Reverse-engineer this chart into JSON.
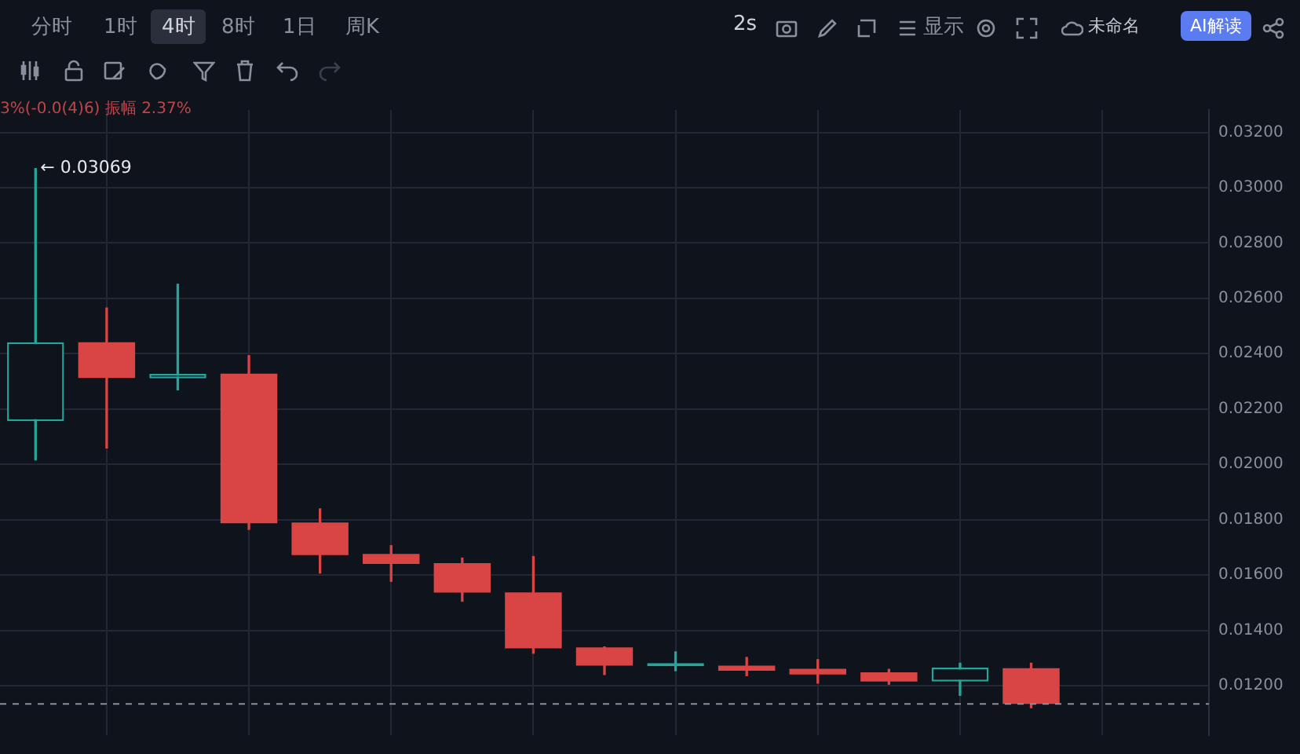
{
  "chart_data": {
    "type": "candlestick",
    "categories": [
      null,
      null,
      null,
      null,
      null,
      null,
      null,
      null,
      null,
      null,
      null,
      null,
      null,
      null,
      null,
      null,
      null
    ],
    "ohlc": [
      [
        0.02156,
        0.03069,
        0.02016,
        0.02441
      ],
      [
        0.02441,
        0.02565,
        0.02059,
        0.02312
      ],
      [
        0.02311,
        0.02651,
        0.02269,
        0.02327
      ],
      [
        0.02328,
        0.02393,
        0.01765,
        0.01787
      ],
      [
        0.0179,
        0.01839,
        0.01607,
        0.01672
      ],
      [
        0.01676,
        0.01706,
        0.01577,
        0.0164
      ],
      [
        0.01643,
        0.01661,
        0.01505,
        0.01536
      ],
      [
        0.01537,
        0.01667,
        0.01317,
        0.01335
      ],
      [
        0.01338,
        0.0134,
        0.0124,
        0.01272
      ],
      [
        0.0127,
        0.01322,
        0.01254,
        0.01275
      ],
      [
        0.01272,
        0.01302,
        0.01236,
        0.01254
      ],
      [
        0.01261,
        0.01294,
        0.01209,
        0.0124
      ],
      [
        0.01248,
        0.01259,
        0.01205,
        0.01215
      ],
      [
        0.01215,
        0.01281,
        0.01165,
        0.01265
      ],
      [
        0.01263,
        0.01281,
        0.0112,
        0.01134
      ],
      null,
      null
    ],
    "colors": [
      "#26a69a",
      "#d94545",
      "#26a69a",
      "#d94545",
      "#d94545",
      "#d94545",
      "#d94545",
      "#d94545",
      "#d94545",
      "#26a69a",
      "#d94545",
      "#d94545",
      "#d94545",
      "#26a69a",
      "#d94545",
      null,
      null
    ],
    "ylim": [
      0.01021,
      0.03281
    ],
    "yticks": [
      {
        "value": 0.012,
        "label": "0.01200"
      },
      {
        "value": 0.014,
        "label": "0.01400"
      },
      {
        "value": 0.016,
        "label": "0.01600"
      },
      {
        "value": 0.018,
        "label": "0.01800"
      },
      {
        "value": 0.02,
        "label": "0.02000"
      },
      {
        "value": 0.022,
        "label": "0.02200"
      },
      {
        "value": 0.024,
        "label": "0.02400"
      },
      {
        "value": 0.026,
        "label": "0.02600"
      },
      {
        "value": 0.028,
        "label": "0.02800"
      },
      {
        "value": 0.03,
        "label": "0.03000"
      },
      {
        "value": 0.032,
        "label": "0.03200"
      }
    ],
    "grid": true,
    "tick_labels": "y",
    "ref_lines": [
      {
        "axis": "y",
        "value": 0.01134,
        "line_style": "dashed",
        "color": "#8a8f9c"
      }
    ],
    "annotations": [
      "分时",
      "1时",
      "4时",
      "8时",
      "1日",
      "周K",
      "2s",
      "显示",
      "未命名",
      "AI解读",
      "3%(-0.0(4)6) 振幅 2.37%",
      "← 0.03069"
    ]
  }
}
